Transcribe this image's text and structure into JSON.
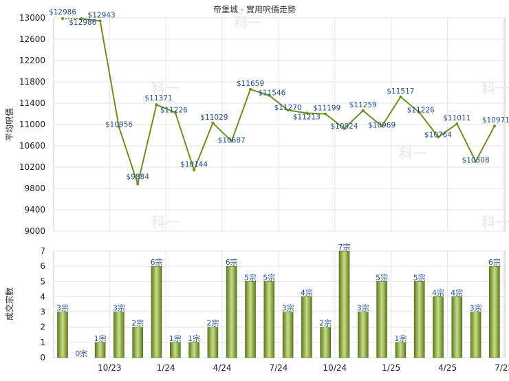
{
  "chart_data": [
    {
      "type": "line",
      "title": "帝堡城 - 實用呎價走勢",
      "xlabel": "",
      "ylabel": "平均呎價",
      "ylim": [
        9000,
        13000
      ],
      "yticks": [
        9000,
        9400,
        9800,
        10200,
        10600,
        11000,
        11400,
        11800,
        12200,
        12600,
        13000
      ],
      "grid": true,
      "color": "#6e8e1f",
      "label_color": "#1f4e8c",
      "values": [
        12986,
        12986,
        12943,
        10956,
        9884,
        11371,
        11226,
        10144,
        11029,
        10687,
        11659,
        11546,
        11270,
        11213,
        11199,
        10924,
        11259,
        10969,
        11517,
        11226,
        10764,
        11011,
        10308,
        10971
      ],
      "labels": [
        "$12986",
        "$12986",
        "$12943",
        "$10956",
        "$9884",
        "$11371",
        "$11226",
        "$10144",
        "$11029",
        "$10687",
        "$11659",
        "$11546",
        "$11270",
        "$11213",
        "$11199",
        "$10924",
        "$11259",
        "$10969",
        "$11517",
        "$11226",
        "$10764",
        "$11011",
        "$10308",
        "$10971"
      ],
      "watermark": "科一"
    },
    {
      "type": "bar",
      "xlabel": "",
      "ylabel": "成交宗數",
      "ylim": [
        0,
        7
      ],
      "yticks": [
        0,
        1,
        2,
        3,
        4,
        5,
        6,
        7
      ],
      "grid": true,
      "color": "#7a9a2a",
      "label_color": "#1f4e8c",
      "values": [
        3,
        0,
        1,
        3,
        2,
        6,
        1,
        1,
        2,
        6,
        5,
        5,
        3,
        4,
        2,
        7,
        3,
        5,
        1,
        5,
        4,
        4,
        3,
        6
      ],
      "labels": [
        "3宗",
        "0宗",
        "1宗",
        "3宗",
        "2宗",
        "6宗",
        "1宗",
        "1宗",
        "2宗",
        "6宗",
        "5宗",
        "5宗",
        "3宗",
        "4宗",
        "2宗",
        "7宗",
        "3宗",
        "5宗",
        "1宗",
        "5宗",
        "4宗",
        "4宗",
        "3宗",
        "6宗"
      ],
      "x_tick_labels": [
        "10/23",
        "1/24",
        "4/24",
        "7/24",
        "10/24",
        "1/25",
        "4/25",
        "7/25"
      ],
      "watermark": "科一"
    }
  ]
}
